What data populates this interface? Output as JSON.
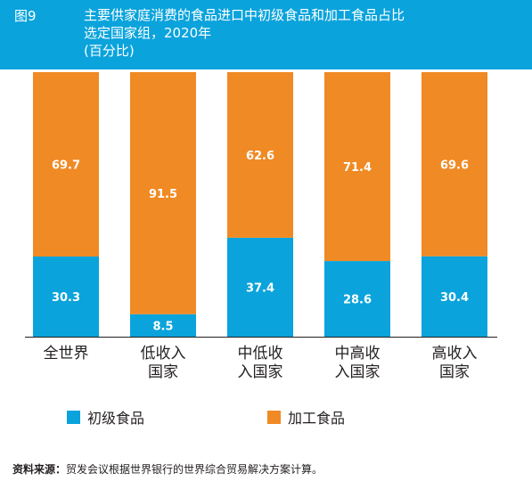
{
  "header": {
    "figure_label": "图9",
    "title_lines": [
      "主要供家庭消费的食品进口中初级食品和加工食品占比",
      "选定国家组，2020年",
      "(百分比)"
    ]
  },
  "chart_data": {
    "type": "bar",
    "stacked": true,
    "categories": [
      [
        "全世界"
      ],
      [
        "低收入",
        "国家"
      ],
      [
        "中低收",
        "入国家"
      ],
      [
        "中高收",
        "入国家"
      ],
      [
        "高收入",
        "国家"
      ]
    ],
    "series": [
      {
        "name": "初级食品",
        "color": "#0aa3dc",
        "values": [
          30.3,
          8.5,
          37.4,
          28.6,
          30.4
        ]
      },
      {
        "name": "加工食品",
        "color": "#f08a24",
        "values": [
          69.7,
          91.5,
          62.6,
          71.4,
          69.6
        ]
      }
    ],
    "ylim": [
      0,
      100
    ],
    "grid": false,
    "legend_position": "bottom"
  },
  "legend": [
    {
      "label": "初级食品",
      "color": "#0aa3dc"
    },
    {
      "label": "加工食品",
      "color": "#f08a24"
    }
  ],
  "source": {
    "label": "资料来源：",
    "text": "贸发会议根据世界银行的世界综合贸易解决方案计算。"
  }
}
